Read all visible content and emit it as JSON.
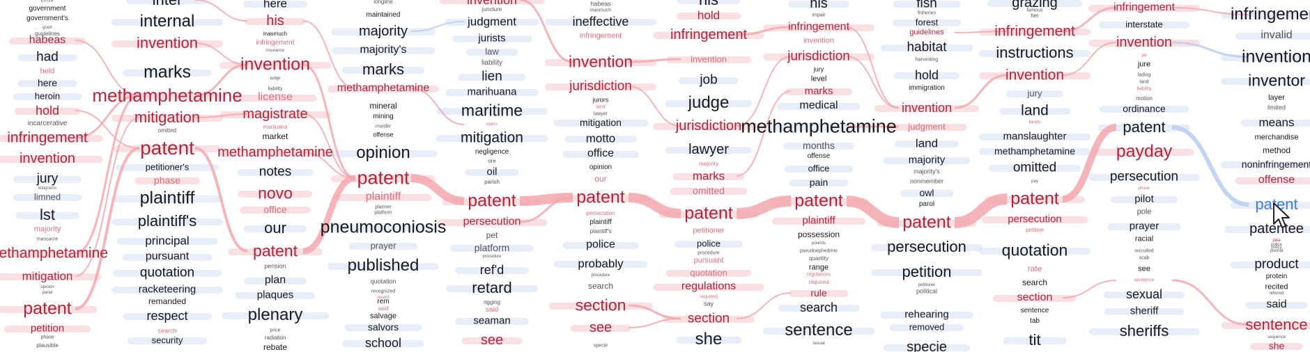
{
  "colors": {
    "highlight": "#b0263e",
    "secondary": "#d9707f",
    "text": "#1a1a1a",
    "muted": "#555555",
    "hover": "#3b7de0",
    "link_red": "#f2a7ad",
    "link_blue": "#b9cdf0"
  },
  "cursor_icon": "mouse-pointer-icon",
  "hovered_word": "patent",
  "columns": [
    {
      "words": [
        "error",
        "government",
        "government's",
        "grant",
        "guidelines",
        "habeas",
        "had",
        "held",
        "here",
        "heroin",
        "hold",
        "incarcerative",
        "infringement",
        "invention",
        "jury",
        "kilograms",
        "limned",
        "lst",
        "majority",
        "massacre",
        "methamphetamine",
        "mitigation",
        "opinion",
        "panel",
        "patent",
        "petition",
        "phase",
        "plausible"
      ]
    },
    {
      "words": [
        "inter",
        "internal",
        "invention",
        "marks",
        "methamphetamine",
        "mitigation",
        "omitted",
        "patent",
        "petitioner's",
        "phase",
        "plaintiff",
        "plaintiff's",
        "principal",
        "pursuant",
        "quotation",
        "racketeering",
        "remanded",
        "respect",
        "search",
        "security"
      ]
    },
    {
      "words": [
        "here",
        "his",
        "inasmuch",
        "infringement",
        "insurance",
        "invention",
        "judge",
        "liability",
        "license",
        "magistrate",
        "marijuana",
        "market",
        "methamphetamine",
        "notes",
        "novo",
        "office",
        "our",
        "patent",
        "pension",
        "plan",
        "plaques",
        "plenary",
        "price",
        "radiation",
        "rebate"
      ]
    },
    {
      "words": [
        "longline",
        "maintained",
        "majority",
        "majority's",
        "marks",
        "methamphetamine",
        "mineral",
        "mining",
        "murder",
        "offense",
        "opinion",
        "patent",
        "plaintiff",
        "planner",
        "platform",
        "pneumoconiosis",
        "prayer",
        "published",
        "quotation",
        "recognized",
        "record",
        "rem",
        "said",
        "salvage",
        "salvors",
        "school"
      ]
    },
    {
      "words": [
        "invention",
        "juncture",
        "judgment",
        "jurists",
        "law",
        "liability",
        "lien",
        "marihuana",
        "maritime",
        "marks",
        "mitigation",
        "negligence",
        "ore",
        "oil",
        "parish",
        "patent",
        "persecution",
        "pet",
        "platform",
        "procedure",
        "ref'd",
        "retard",
        "rigging",
        "said",
        "seaman",
        "see"
      ]
    },
    {
      "words": [
        "habeas",
        "inasmuch",
        "ineffective",
        "infringement",
        "invention",
        "jurisdiction",
        "jurors",
        "land",
        "lawyer",
        "mitigation",
        "motto",
        "office",
        "opinion",
        "our",
        "patent",
        "persecution",
        "plaintiff",
        "plaintiff's",
        "police",
        "probably",
        "procedure",
        "search",
        "section",
        "see",
        "specie"
      ]
    },
    {
      "words": [
        "his",
        "hold",
        "infringement",
        "invention",
        "job",
        "judge",
        "jurisdiction",
        "lawyer",
        "majority",
        "marks",
        "omitted",
        "patent",
        "petitioner",
        "police",
        "procedure",
        "pursuant",
        "quotation",
        "regulations",
        "required",
        "say",
        "section",
        "she"
      ]
    },
    {
      "words": [
        "his",
        "impair",
        "infringement",
        "invention",
        "jurisdiction",
        "jury",
        "level",
        "marks",
        "medical",
        "methamphetamine",
        "months",
        "offense",
        "office",
        "pain",
        "patent",
        "plaintiff",
        "possession",
        "pounds",
        "pseudoephedrine",
        "quantity",
        "range",
        "regulations",
        "required",
        "rule",
        "search",
        "sentence",
        "sexual"
      ]
    },
    {
      "words": [
        "fish",
        "fisheries",
        "forest",
        "guidelines",
        "habitat",
        "harvesting",
        "hold",
        "immigration",
        "invention",
        "judgment",
        "land",
        "majority",
        "majority's",
        "nonmember",
        "owl",
        "parol",
        "patent",
        "persecution",
        "petition",
        "petitioner",
        "political",
        "rehearing",
        "removed",
        "specie"
      ]
    },
    {
      "words": [
        "grazing",
        "famous",
        "her",
        "infringement",
        "instructions",
        "invention",
        "jury",
        "land",
        "lands",
        "manslaughter",
        "methamphetamine",
        "omitted",
        "pay",
        "patent",
        "persecution",
        "petition",
        "quotation",
        "rate",
        "search",
        "section",
        "sentence",
        "tab",
        "tit"
      ]
    },
    {
      "words": [
        "infringement",
        "interstate",
        "invention",
        "jail",
        "jure",
        "lading",
        "land",
        "liability",
        "motion",
        "ordinance",
        "patent",
        "payday",
        "persecution",
        "phase",
        "pilot",
        "pole",
        "prayer",
        "racial",
        "recruited",
        "scab",
        "see",
        "sentence",
        "sexual",
        "sheriff",
        "sheriffs"
      ]
    },
    {
      "words": [
        "infringement",
        "invalid",
        "invention",
        "inventor",
        "layer",
        "limited",
        "means",
        "merchandise",
        "method",
        "noninfringement",
        "offense",
        "patent",
        "patentee",
        "plea",
        "police",
        "policy",
        "pretrial",
        "product",
        "protein",
        "recited",
        "referred",
        "said",
        "sentence",
        "sequence",
        "she"
      ]
    }
  ]
}
